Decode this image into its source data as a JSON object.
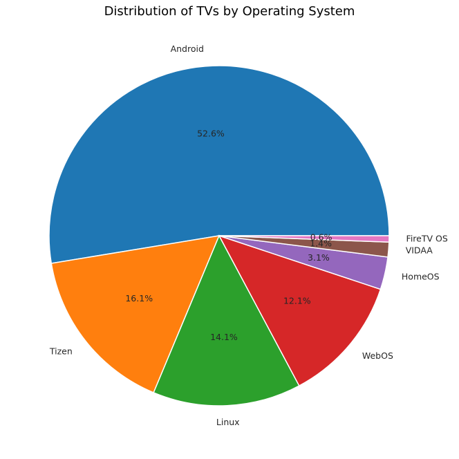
{
  "chart_data": {
    "type": "pie",
    "title": "Distribution of TVs by Operating System",
    "categories": [
      "Android",
      "Tizen",
      "Linux",
      "WebOS",
      "HomeOS",
      "VIDAA",
      "FireTV OS"
    ],
    "values": [
      52.6,
      16.1,
      14.1,
      12.1,
      3.1,
      1.4,
      0.6
    ],
    "value_labels": [
      "52.6%",
      "16.1%",
      "14.1%",
      "12.1%",
      "3.1%",
      "1.4%",
      "0.6%"
    ],
    "colors": [
      "#1f77b4",
      "#ff7f0e",
      "#2ca02c",
      "#d62728",
      "#9467bd",
      "#8c564b",
      "#e377c2"
    ],
    "start_angle_deg": 0,
    "direction": "counterclockwise",
    "legend": "none"
  }
}
